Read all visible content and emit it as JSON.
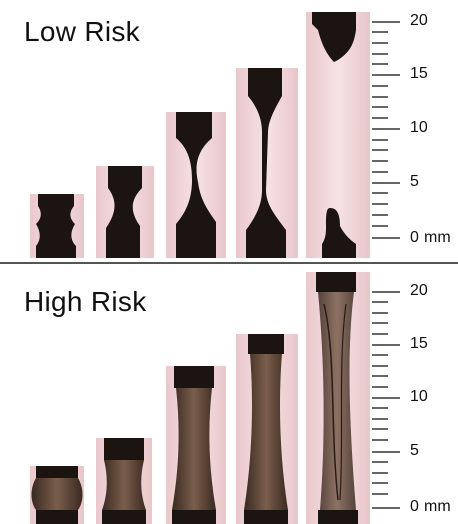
{
  "figure": {
    "panels": [
      {
        "title": "Low Risk",
        "scale_labels": [
          "20",
          "15",
          "10",
          "5",
          "0",
          "mm"
        ],
        "stretch_steps": 5
      },
      {
        "title": "High Risk",
        "scale_labels": [
          "20",
          "15",
          "10",
          "5",
          "0",
          "mm"
        ],
        "stretch_steps": 5
      }
    ],
    "colors": {
      "background_tint": "#f3d9dc",
      "sample_dark": "#1c1410",
      "sample_fluid_high": "#6b5040"
    }
  }
}
